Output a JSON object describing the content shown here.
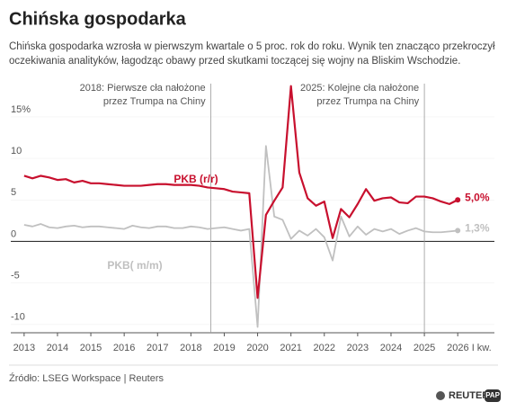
{
  "chart_data": {
    "type": "line",
    "title": "Chińska gospodarka",
    "subtitle": [
      "Chińska gospodarka wzrosła w pierwszym kwartale o 5 proc. rok do roku. Wynik ten znacząco przekroczył",
      "oczekiwania analityków, łagodząc obawy przed skutkami toczącej się wojny na Bliskim Wschodzie."
    ],
    "source": "Źródło: LSEG Workspace | Reuters",
    "logos": [
      "REUTERS",
      "PAP"
    ],
    "x": [
      2013,
      2013.25,
      2013.5,
      2013.75,
      2014,
      2014.25,
      2014.5,
      2014.75,
      2015,
      2015.25,
      2015.5,
      2015.75,
      2016,
      2016.25,
      2016.5,
      2016.75,
      2017,
      2017.25,
      2017.5,
      2017.75,
      2018,
      2018.25,
      2018.5,
      2018.75,
      2019,
      2019.25,
      2019.5,
      2019.75,
      2020,
      2020.25,
      2020.5,
      2020.75,
      2021,
      2021.25,
      2021.5,
      2021.75,
      2022,
      2022.25,
      2022.5,
      2022.75,
      2023,
      2023.25,
      2023.5,
      2023.75,
      2024,
      2024.25,
      2024.5,
      2024.75,
      2025,
      2025.25,
      2025.5,
      2025.75,
      2026
    ],
    "series": [
      {
        "name": "PKB (r/r)",
        "color": "#c8102e",
        "values": [
          7.9,
          7.6,
          7.9,
          7.7,
          7.4,
          7.5,
          7.1,
          7.3,
          7.0,
          7.0,
          6.9,
          6.8,
          6.7,
          6.7,
          6.7,
          6.8,
          6.9,
          6.9,
          6.8,
          6.8,
          6.8,
          6.7,
          6.5,
          6.4,
          6.3,
          6.0,
          5.9,
          5.8,
          -6.8,
          3.2,
          4.9,
          6.5,
          18.7,
          8.3,
          5.2,
          4.3,
          4.8,
          0.4,
          3.9,
          2.9,
          4.5,
          6.3,
          4.9,
          5.2,
          5.3,
          4.7,
          4.6,
          5.4,
          5.4,
          5.2,
          4.8,
          4.5,
          5.0
        ],
        "value_labels": [
          null,
          null,
          null,
          null,
          null,
          null,
          null,
          null,
          null,
          null,
          null,
          null,
          null,
          null,
          null,
          null,
          null,
          null,
          null,
          null,
          null,
          null,
          null,
          null,
          null,
          null,
          null,
          null,
          null,
          null,
          null,
          null,
          null,
          null,
          null,
          null,
          null,
          null,
          null,
          null,
          null,
          null,
          null,
          null,
          null,
          null,
          null,
          null,
          null,
          null,
          null,
          null,
          "5,0%"
        ]
      },
      {
        "name": "PKB( m/m)",
        "color": "#c0c0c0",
        "values": [
          2.0,
          1.8,
          2.1,
          1.7,
          1.6,
          1.8,
          1.9,
          1.7,
          1.8,
          1.8,
          1.7,
          1.6,
          1.5,
          1.9,
          1.7,
          1.6,
          1.8,
          1.8,
          1.6,
          1.6,
          1.8,
          1.7,
          1.5,
          1.6,
          1.7,
          1.5,
          1.3,
          1.5,
          -10.3,
          11.5,
          3.0,
          2.6,
          0.3,
          1.3,
          0.7,
          1.5,
          0.5,
          -2.3,
          3.0,
          0.6,
          1.8,
          0.8,
          1.5,
          1.2,
          1.5,
          0.9,
          1.3,
          1.6,
          1.2,
          1.1,
          1.1,
          1.2,
          1.3
        ],
        "value_labels": [
          null,
          null,
          null,
          null,
          null,
          null,
          null,
          null,
          null,
          null,
          null,
          null,
          null,
          null,
          null,
          null,
          null,
          null,
          null,
          null,
          null,
          null,
          null,
          null,
          null,
          null,
          null,
          null,
          null,
          null,
          null,
          null,
          null,
          null,
          null,
          null,
          null,
          null,
          null,
          null,
          null,
          null,
          null,
          null,
          null,
          null,
          null,
          null,
          null,
          null,
          null,
          null,
          "1,3%"
        ]
      }
    ],
    "xlim": [
      2012.6,
      2027.1
    ],
    "xticks": [
      2013,
      2014,
      2015,
      2016,
      2017,
      2018,
      2019,
      2020,
      2021,
      2022,
      2023,
      2024,
      2025,
      {
        "value": 2026,
        "label": "2026 I kw."
      }
    ],
    "ylim": [
      -11,
      19
    ],
    "yticks": [
      {
        "value": 15,
        "label": "15%"
      },
      10,
      5,
      0,
      -5,
      -10
    ],
    "annotations": [
      {
        "x": 2018.6,
        "lines": [
          "2018: Pierwsze cła nałożone",
          "przez Trumpa na Chiny"
        ]
      },
      {
        "x": 2025,
        "lines": [
          "2025: Kolejne cła nałożone",
          "przez Trumpa na Chiny"
        ]
      }
    ]
  }
}
